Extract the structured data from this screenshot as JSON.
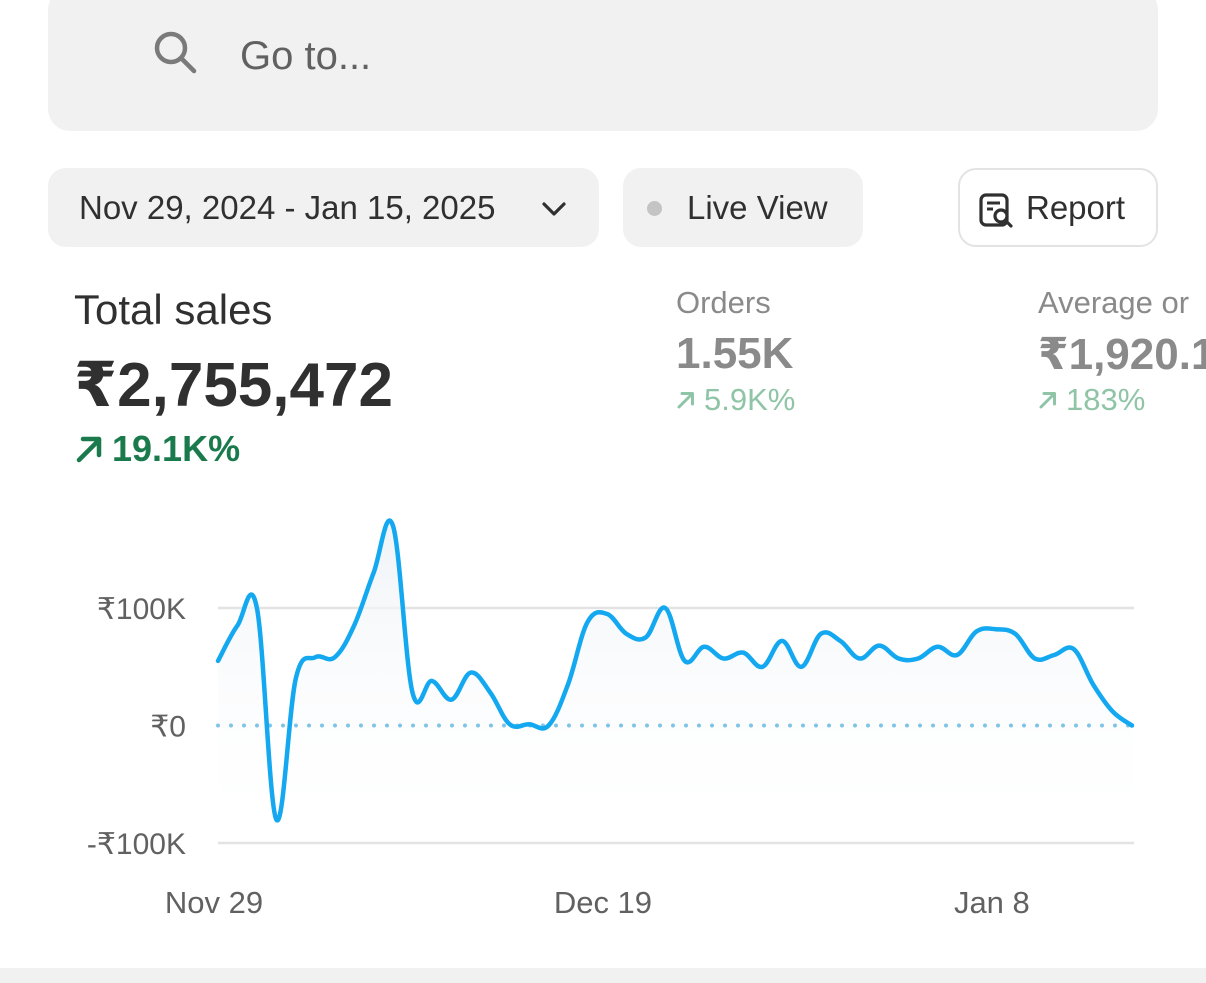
{
  "search": {
    "placeholder": "Go to..."
  },
  "filters": {
    "date_range": "Nov 29, 2024 - Jan 15, 2025",
    "live_view": "Live View",
    "report": "Report"
  },
  "metrics": {
    "total_sales": {
      "label": "Total sales",
      "value": "₹2,755,472",
      "delta": "19.1K%"
    },
    "orders": {
      "label": "Orders",
      "value": "1.55K",
      "delta": "5.9K%"
    },
    "average_order": {
      "label": "Average or",
      "value": "₹1,920.1",
      "delta": "183%"
    }
  },
  "colors": {
    "series": "#13a8f0",
    "comparison": "#7ec4e8",
    "positive_strong": "#1a7a4c",
    "positive_muted": "#8fc5a6"
  },
  "chart_data": {
    "type": "line",
    "title": "",
    "xlabel": "",
    "ylabel": "",
    "y_tick_labels": [
      "₹100K",
      "₹0",
      "-₹100K"
    ],
    "y_ticks": [
      100000,
      0,
      -100000
    ],
    "ylim": [
      -100000,
      100000
    ],
    "x_tick_labels": [
      "Nov 29",
      "Dec 19",
      "Jan 8"
    ],
    "x_ticks": [
      "2024-11-29",
      "2024-12-19",
      "2025-01-08"
    ],
    "grid": true,
    "series": [
      {
        "x": [
          "2024-11-29",
          "2024-11-30",
          "2024-12-01",
          "2024-12-02",
          "2024-12-03",
          "2024-12-04",
          "2024-12-05",
          "2024-12-06",
          "2024-12-07",
          "2024-12-08",
          "2024-12-09",
          "2024-12-10",
          "2024-12-11",
          "2024-12-12",
          "2024-12-13",
          "2024-12-14",
          "2024-12-15",
          "2024-12-16",
          "2024-12-17",
          "2024-12-18",
          "2024-12-19",
          "2024-12-20",
          "2024-12-21",
          "2024-12-22",
          "2024-12-23",
          "2024-12-24",
          "2024-12-25",
          "2024-12-26",
          "2024-12-27",
          "2024-12-28",
          "2024-12-29",
          "2024-12-30",
          "2024-12-31",
          "2025-01-01",
          "2025-01-02",
          "2025-01-03",
          "2025-01-04",
          "2025-01-05",
          "2025-01-06",
          "2025-01-07",
          "2025-01-08",
          "2025-01-09",
          "2025-01-10",
          "2025-01-11",
          "2025-01-12",
          "2025-01-13",
          "2025-01-14",
          "2025-01-15"
        ],
        "values": [
          55000,
          85000,
          100000,
          -80000,
          40000,
          58000,
          58000,
          85000,
          130000,
          170000,
          28000,
          38000,
          22000,
          45000,
          28000,
          1000,
          1000,
          0,
          35000,
          88000,
          95000,
          78000,
          75000,
          100000,
          55000,
          67000,
          57000,
          62000,
          50000,
          72000,
          50000,
          78000,
          72000,
          57000,
          68000,
          57000,
          57000,
          67000,
          60000,
          80000,
          82000,
          78000,
          57000,
          60000,
          65000,
          35000,
          12000,
          0
        ]
      },
      {
        "x": [
          "2024-11-29",
          "2025-01-15"
        ],
        "values": [
          0,
          0
        ]
      }
    ]
  }
}
